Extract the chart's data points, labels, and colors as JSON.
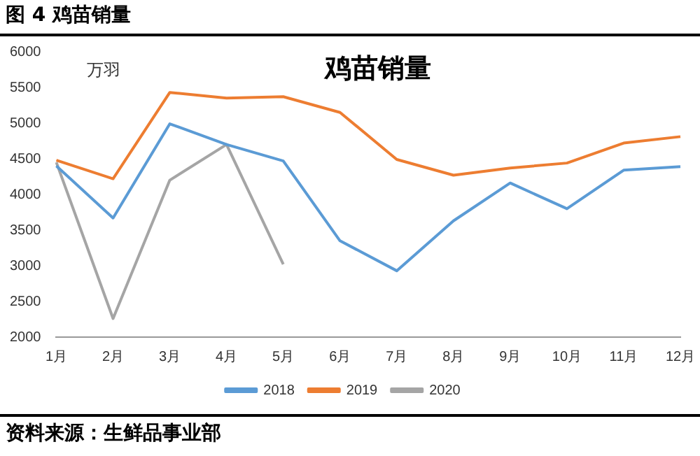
{
  "chart_data": {
    "type": "line",
    "title": "鸡苗销量",
    "ylabel": "万羽",
    "annotations": [
      "图 4 鸡苗销量",
      "资料来源：生鲜品事业部"
    ],
    "categories": [
      "1月",
      "2月",
      "3月",
      "4月",
      "5月",
      "6月",
      "7月",
      "8月",
      "9月",
      "10月",
      "11月",
      "12月"
    ],
    "series": [
      {
        "name": "2018",
        "color": "#5b9bd5",
        "values": [
          4400,
          3670,
          4990,
          4700,
          4470,
          3350,
          2930,
          3630,
          4160,
          3800,
          4340,
          4390
        ]
      },
      {
        "name": "2019",
        "color": "#ed7d31",
        "values": [
          4480,
          4220,
          5430,
          5350,
          5370,
          5150,
          4490,
          4270,
          4370,
          4440,
          4720,
          4810
        ]
      },
      {
        "name": "2020",
        "color": "#a5a5a5",
        "values": [
          4450,
          2260,
          4200,
          4700,
          3020,
          null,
          null,
          null,
          null,
          null,
          null,
          null
        ]
      }
    ],
    "ylim": [
      2000,
      6000
    ],
    "yticks": [
      2000,
      2500,
      3000,
      3500,
      4000,
      4500,
      5000,
      5500,
      6000
    ],
    "grid": false,
    "legend": "bottom",
    "marker": "none",
    "line_style": "solid"
  }
}
